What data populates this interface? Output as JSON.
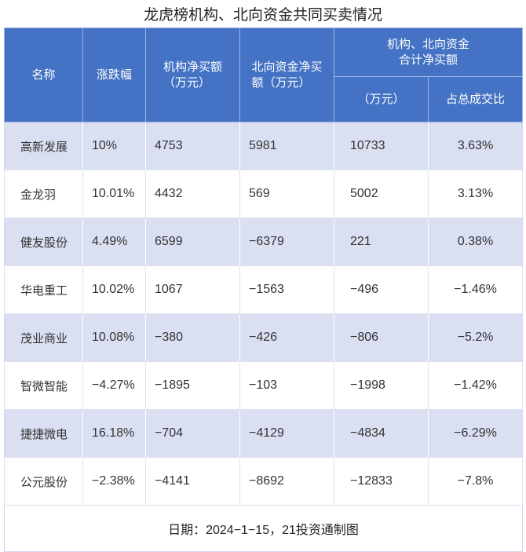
{
  "chart_data": {
    "type": "table",
    "title": "龙虎榜机构、北向资金共同买卖情况",
    "columns": {
      "name": "名称",
      "change": "涨跌幅",
      "institution_net_buy": [
        "机构净买额",
        "（万元）"
      ],
      "northbound_net_buy": [
        "北向资金净买",
        "额（万元）"
      ],
      "combined_group": [
        "机构、北向资金",
        "合计净买额"
      ],
      "combined_net_buy": "（万元）",
      "turnover_ratio": "占总成交比"
    },
    "rows": [
      {
        "name": "高新发展",
        "change": "10%",
        "institution_net_buy": "4753",
        "northbound_net_buy": "5981",
        "combined_net_buy": "10733",
        "turnover_ratio": "3.63%"
      },
      {
        "name": "金龙羽",
        "change": "10.01%",
        "institution_net_buy": "4432",
        "northbound_net_buy": "569",
        "combined_net_buy": "5002",
        "turnover_ratio": "3.13%"
      },
      {
        "name": "健友股份",
        "change": "4.49%",
        "institution_net_buy": "6599",
        "northbound_net_buy": "−6379",
        "combined_net_buy": "221",
        "turnover_ratio": "0.38%"
      },
      {
        "name": "华电重工",
        "change": "10.02%",
        "institution_net_buy": "1067",
        "northbound_net_buy": "−1563",
        "combined_net_buy": "−496",
        "turnover_ratio": "−1.46%"
      },
      {
        "name": "茂业商业",
        "change": "10.08%",
        "institution_net_buy": "−380",
        "northbound_net_buy": "−426",
        "combined_net_buy": "−806",
        "turnover_ratio": "−5.2%"
      },
      {
        "name": "智微智能",
        "change": "−4.27%",
        "institution_net_buy": "−1895",
        "northbound_net_buy": "−103",
        "combined_net_buy": "−1998",
        "turnover_ratio": "−1.42%"
      },
      {
        "name": "捷捷微电",
        "change": "16.18%",
        "institution_net_buy": "−704",
        "northbound_net_buy": "−4129",
        "combined_net_buy": "−4834",
        "turnover_ratio": "−6.29%"
      },
      {
        "name": "公元股份",
        "change": "−2.38%",
        "institution_net_buy": "−4141",
        "northbound_net_buy": "−8692",
        "combined_net_buy": "−12833",
        "turnover_ratio": "−7.8%"
      }
    ],
    "footer": "日期：2024−1−15，21投资通制图"
  },
  "colors": {
    "header_bg": "#4472C4",
    "header_text": "#FFFFFF",
    "alt_row_bg": "#DAE0F2",
    "row_bg": "#FFFFFF"
  }
}
